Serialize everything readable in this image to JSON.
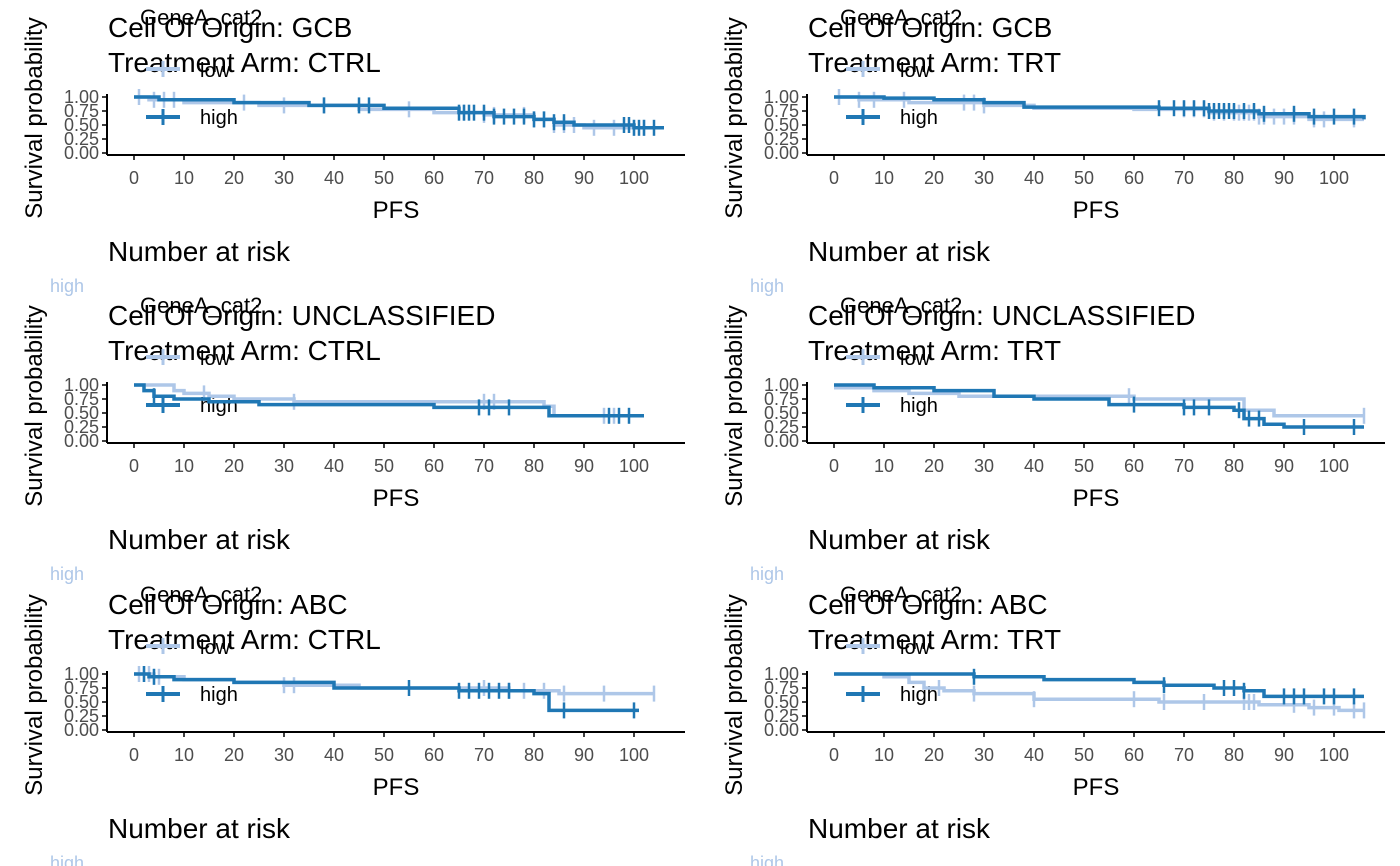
{
  "common": {
    "ylabel": "Survival probability",
    "xlabel": "PFS",
    "legend_title": "GeneA_cat2",
    "risk_title": "Number at risk",
    "yticks": [
      "0.00",
      "0.25",
      "0.50",
      "0.75",
      "1.00"
    ],
    "xticks": [
      "0",
      "10",
      "20",
      "30",
      "40",
      "50",
      "60",
      "70",
      "80",
      "90",
      "100"
    ],
    "strata_labels": [
      "low",
      "high"
    ],
    "colors": {
      "low": "#aec7e8",
      "high": "#1f77b4",
      "axis": "#000000"
    }
  },
  "chart_data": [
    {
      "type": "line",
      "title": [
        "Cell Of Origin: GCB",
        "Treatment Arm: CTRL"
      ],
      "xlim": [
        0,
        105
      ],
      "ylim": [
        0,
        1
      ],
      "series": [
        {
          "name": "low",
          "step": [
            [
              0,
              1.0
            ],
            [
              3,
              0.95
            ],
            [
              10,
              0.9
            ],
            [
              25,
              0.85
            ],
            [
              45,
              0.78
            ],
            [
              60,
              0.72
            ],
            [
              70,
              0.68
            ],
            [
              80,
              0.6
            ],
            [
              84,
              0.5
            ],
            [
              90,
              0.45
            ],
            [
              105,
              0.45
            ]
          ],
          "censor": [
            1,
            4,
            6,
            8,
            22,
            30,
            38,
            55,
            66,
            70,
            72,
            78,
            80,
            82,
            84,
            86,
            88,
            92,
            96,
            100,
            102
          ]
        },
        {
          "name": "high",
          "step": [
            [
              0,
              1.0
            ],
            [
              5,
              0.95
            ],
            [
              20,
              0.9
            ],
            [
              35,
              0.85
            ],
            [
              50,
              0.8
            ],
            [
              65,
              0.72
            ],
            [
              72,
              0.65
            ],
            [
              80,
              0.6
            ],
            [
              84,
              0.55
            ],
            [
              88,
              0.5
            ],
            [
              100,
              0.45
            ],
            [
              106,
              0.45
            ]
          ],
          "censor": [
            38,
            45,
            47,
            65,
            66,
            67,
            68,
            70,
            72,
            74,
            76,
            78,
            80,
            82,
            84,
            86,
            98,
            99,
            100,
            101,
            102,
            104
          ]
        }
      ]
    },
    {
      "type": "line",
      "title": [
        "Cell Of Origin: GCB",
        "Treatment Arm: TRT"
      ],
      "xlim": [
        0,
        105
      ],
      "ylim": [
        0,
        1
      ],
      "series": [
        {
          "name": "low",
          "step": [
            [
              0,
              1.0
            ],
            [
              5,
              0.95
            ],
            [
              15,
              0.9
            ],
            [
              30,
              0.85
            ],
            [
              40,
              0.8
            ],
            [
              60,
              0.78
            ],
            [
              75,
              0.72
            ],
            [
              85,
              0.65
            ],
            [
              95,
              0.6
            ],
            [
              106,
              0.6
            ]
          ],
          "censor": [
            1,
            5,
            8,
            14,
            26,
            28,
            30,
            70,
            72,
            74,
            76,
            78,
            80,
            81,
            82,
            83,
            84,
            85,
            86,
            88,
            90,
            92,
            96,
            98,
            104
          ]
        },
        {
          "name": "high",
          "step": [
            [
              0,
              1.0
            ],
            [
              10,
              0.98
            ],
            [
              20,
              0.95
            ],
            [
              30,
              0.9
            ],
            [
              38,
              0.82
            ],
            [
              65,
              0.8
            ],
            [
              75,
              0.75
            ],
            [
              85,
              0.7
            ],
            [
              95,
              0.65
            ],
            [
              106,
              0.6
            ]
          ],
          "censor": [
            65,
            68,
            70,
            72,
            74,
            75,
            76,
            77,
            78,
            79,
            80,
            82,
            84,
            86,
            92,
            96,
            100,
            104
          ]
        }
      ]
    },
    {
      "type": "line",
      "title": [
        "Cell Of Origin: UNCLASSIFIED",
        "Treatment Arm: CTRL"
      ],
      "xlim": [
        0,
        105
      ],
      "ylim": [
        0,
        1
      ],
      "series": [
        {
          "name": "low",
          "step": [
            [
              0,
              1.0
            ],
            [
              4,
              1.0
            ],
            [
              8,
              0.9
            ],
            [
              10,
              0.85
            ],
            [
              15,
              0.8
            ],
            [
              20,
              0.75
            ],
            [
              32,
              0.7
            ],
            [
              82,
              0.62
            ],
            [
              84,
              0.45
            ],
            [
              102,
              0.45
            ]
          ],
          "censor": [
            14,
            32,
            70,
            72,
            94,
            96
          ]
        },
        {
          "name": "high",
          "step": [
            [
              0,
              1.0
            ],
            [
              2,
              0.9
            ],
            [
              4,
              0.8
            ],
            [
              8,
              0.75
            ],
            [
              15,
              0.7
            ],
            [
              25,
              0.65
            ],
            [
              60,
              0.6
            ],
            [
              83,
              0.45
            ],
            [
              102,
              0.45
            ]
          ],
          "censor": [
            4,
            69,
            71,
            75,
            95,
            97,
            99
          ]
        }
      ]
    },
    {
      "type": "line",
      "title": [
        "Cell Of Origin: UNCLASSIFIED",
        "Treatment Arm: TRT"
      ],
      "xlim": [
        0,
        105
      ],
      "ylim": [
        0,
        1
      ],
      "series": [
        {
          "name": "low",
          "step": [
            [
              0,
              0.95
            ],
            [
              8,
              0.9
            ],
            [
              15,
              0.85
            ],
            [
              25,
              0.8
            ],
            [
              60,
              0.75
            ],
            [
              82,
              0.55
            ],
            [
              88,
              0.45
            ],
            [
              106,
              0.45
            ]
          ],
          "censor": [
            59,
            82,
            106
          ]
        },
        {
          "name": "high",
          "step": [
            [
              0,
              1.0
            ],
            [
              8,
              0.95
            ],
            [
              20,
              0.9
            ],
            [
              32,
              0.8
            ],
            [
              40,
              0.75
            ],
            [
              55,
              0.65
            ],
            [
              70,
              0.6
            ],
            [
              80,
              0.55
            ],
            [
              82,
              0.4
            ],
            [
              86,
              0.3
            ],
            [
              90,
              0.25
            ],
            [
              106,
              0.25
            ]
          ],
          "censor": [
            60,
            70,
            72,
            75,
            81,
            83,
            85,
            94,
            104
          ]
        }
      ]
    },
    {
      "type": "line",
      "title": [
        "Cell Of Origin: ABC",
        "Treatment Arm: CTRL"
      ],
      "xlim": [
        0,
        105
      ],
      "ylim": [
        0,
        1
      ],
      "series": [
        {
          "name": "low",
          "step": [
            [
              0,
              1.0
            ],
            [
              4,
              0.95
            ],
            [
              10,
              0.9
            ],
            [
              20,
              0.85
            ],
            [
              30,
              0.8
            ],
            [
              45,
              0.75
            ],
            [
              75,
              0.7
            ],
            [
              85,
              0.65
            ],
            [
              104,
              0.65
            ]
          ],
          "censor": [
            1,
            2,
            3,
            4,
            5,
            30,
            32,
            70,
            75,
            78,
            82,
            86,
            94,
            104
          ]
        },
        {
          "name": "high",
          "step": [
            [
              0,
              1.0
            ],
            [
              3,
              0.95
            ],
            [
              8,
              0.9
            ],
            [
              20,
              0.85
            ],
            [
              40,
              0.75
            ],
            [
              65,
              0.7
            ],
            [
              80,
              0.65
            ],
            [
              83,
              0.35
            ],
            [
              101,
              0.35
            ]
          ],
          "censor": [
            2,
            4,
            55,
            65,
            67,
            69,
            71,
            73,
            75,
            86,
            100
          ]
        }
      ]
    },
    {
      "type": "line",
      "title": [
        "Cell Of Origin: ABC",
        "Treatment Arm: TRT"
      ],
      "xlim": [
        0,
        105
      ],
      "ylim": [
        0,
        1
      ],
      "series": [
        {
          "name": "low",
          "step": [
            [
              0,
              1.0
            ],
            [
              10,
              0.95
            ],
            [
              15,
              0.85
            ],
            [
              18,
              0.75
            ],
            [
              22,
              0.7
            ],
            [
              28,
              0.65
            ],
            [
              40,
              0.55
            ],
            [
              65,
              0.5
            ],
            [
              85,
              0.45
            ],
            [
              95,
              0.4
            ],
            [
              101,
              0.35
            ],
            [
              106,
              0.35
            ]
          ],
          "censor": [
            21,
            28,
            40,
            60,
            66,
            74,
            82,
            83,
            84,
            92,
            96,
            100,
            104,
            106
          ]
        },
        {
          "name": "high",
          "step": [
            [
              0,
              1.0
            ],
            [
              28,
              0.95
            ],
            [
              42,
              0.9
            ],
            [
              60,
              0.85
            ],
            [
              66,
              0.8
            ],
            [
              76,
              0.75
            ],
            [
              82,
              0.7
            ],
            [
              86,
              0.6
            ],
            [
              106,
              0.6
            ]
          ],
          "censor": [
            28,
            66,
            78,
            80,
            82,
            90,
            92,
            94,
            98,
            100,
            104
          ]
        }
      ]
    }
  ]
}
